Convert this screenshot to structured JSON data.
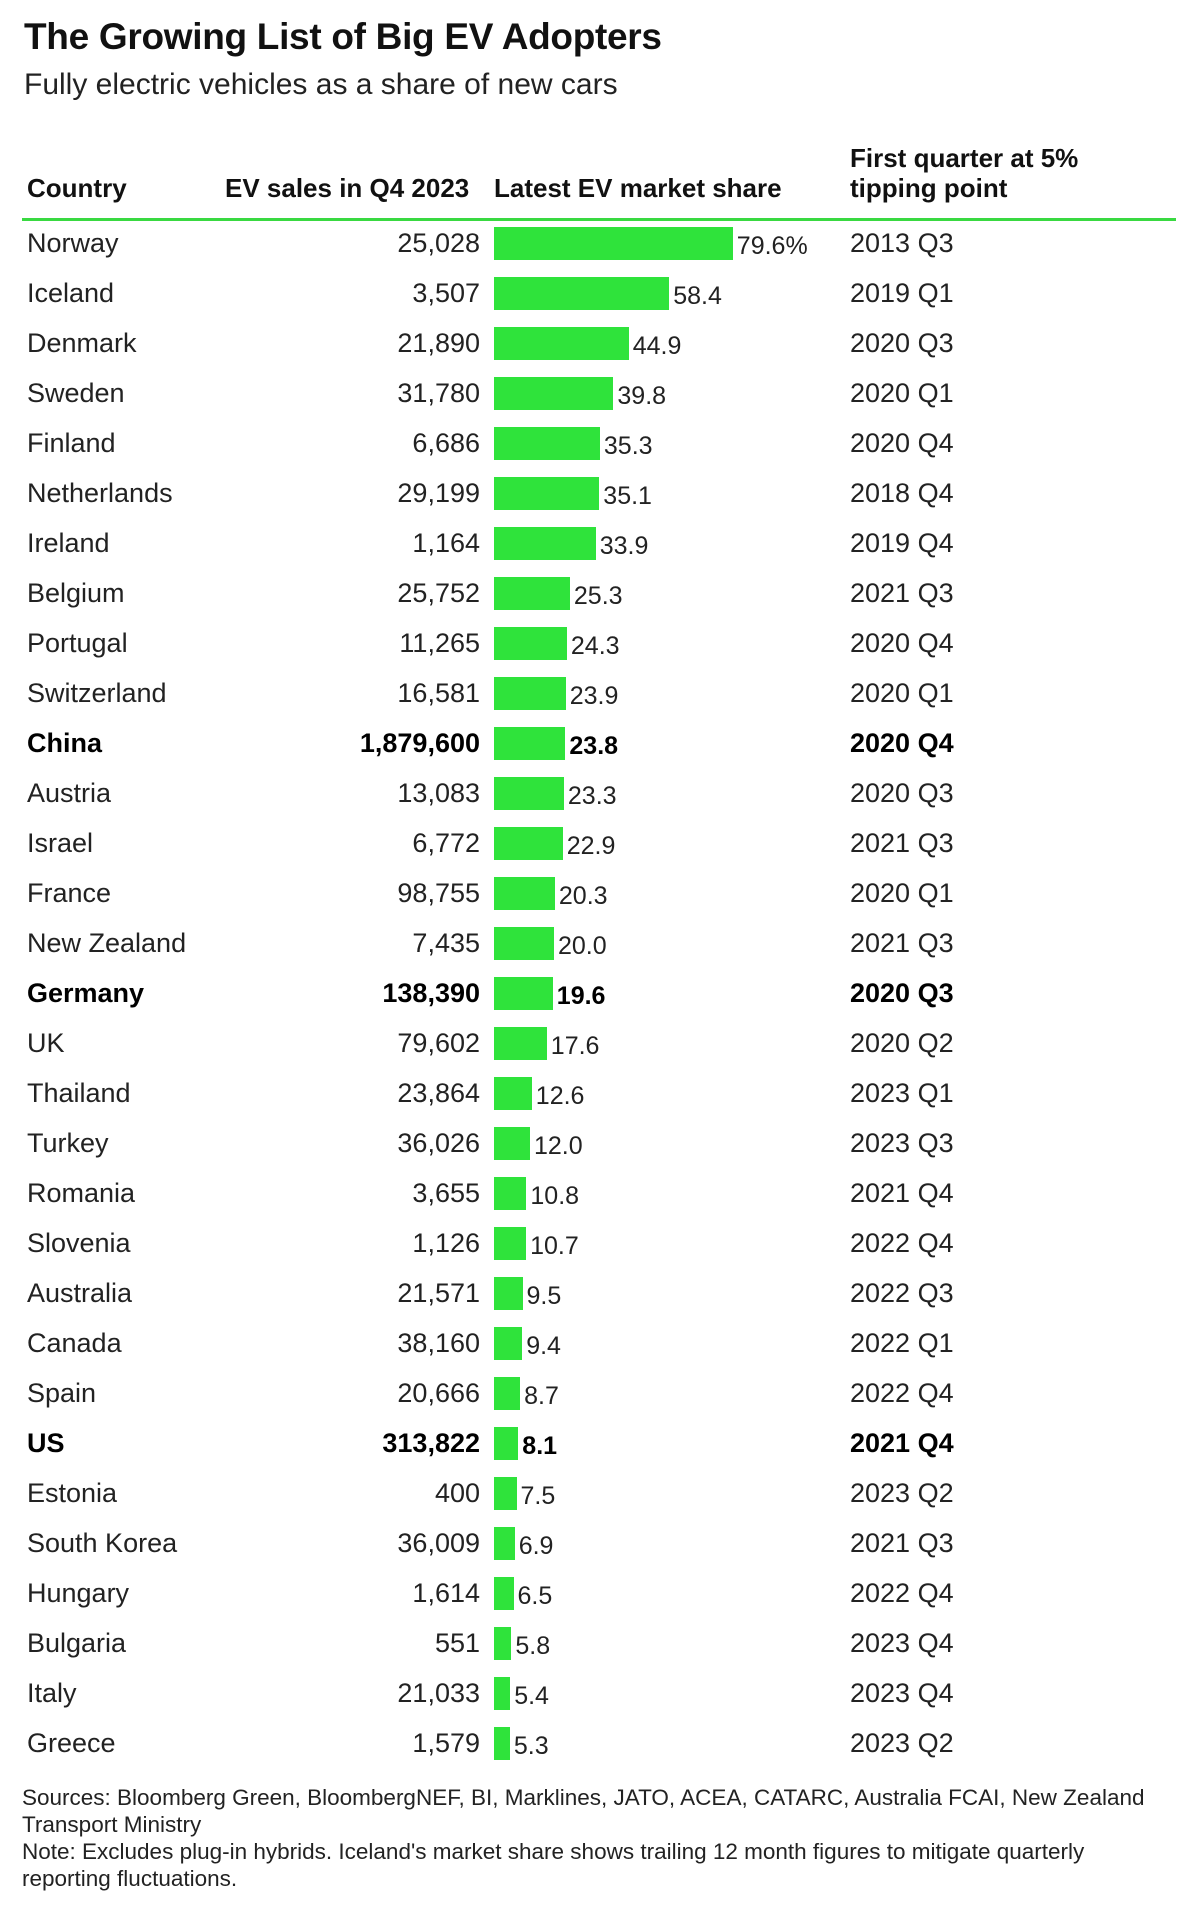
{
  "title": "The Growing List of Big EV Adopters",
  "subtitle": "Fully electric vehicles as a share of new cars",
  "columns": {
    "country": "Country",
    "sales": "EV sales in Q4 2023",
    "share": "Latest EV market share",
    "tipping": "First quarter at 5% tipping point"
  },
  "colors": {
    "bar": "#2fe33b",
    "header_rule": "#39d941"
  },
  "chart_data": {
    "type": "bar",
    "orientation": "horizontal",
    "title": "The Growing List of Big EV Adopters",
    "subtitle": "Fully electric vehicles as a share of new cars",
    "value_unit": "%",
    "xlim": [
      0,
      80
    ],
    "rows": [
      {
        "country": "Norway",
        "sales": "25,028",
        "share": 79.6,
        "share_label": "79.6%",
        "tipping": "2013 Q3",
        "bold": false
      },
      {
        "country": "Iceland",
        "sales": "3,507",
        "share": 58.4,
        "share_label": "58.4",
        "tipping": "2019 Q1",
        "bold": false
      },
      {
        "country": "Denmark",
        "sales": "21,890",
        "share": 44.9,
        "share_label": "44.9",
        "tipping": "2020 Q3",
        "bold": false
      },
      {
        "country": "Sweden",
        "sales": "31,780",
        "share": 39.8,
        "share_label": "39.8",
        "tipping": "2020 Q1",
        "bold": false
      },
      {
        "country": "Finland",
        "sales": "6,686",
        "share": 35.3,
        "share_label": "35.3",
        "tipping": "2020 Q4",
        "bold": false
      },
      {
        "country": "Netherlands",
        "sales": "29,199",
        "share": 35.1,
        "share_label": "35.1",
        "tipping": "2018 Q4",
        "bold": false
      },
      {
        "country": "Ireland",
        "sales": "1,164",
        "share": 33.9,
        "share_label": "33.9",
        "tipping": "2019 Q4",
        "bold": false
      },
      {
        "country": "Belgium",
        "sales": "25,752",
        "share": 25.3,
        "share_label": "25.3",
        "tipping": "2021 Q3",
        "bold": false
      },
      {
        "country": "Portugal",
        "sales": "11,265",
        "share": 24.3,
        "share_label": "24.3",
        "tipping": "2020 Q4",
        "bold": false
      },
      {
        "country": "Switzerland",
        "sales": "16,581",
        "share": 23.9,
        "share_label": "23.9",
        "tipping": "2020 Q1",
        "bold": false
      },
      {
        "country": "China",
        "sales": "1,879,600",
        "share": 23.8,
        "share_label": "23.8",
        "tipping": "2020 Q4",
        "bold": true
      },
      {
        "country": "Austria",
        "sales": "13,083",
        "share": 23.3,
        "share_label": "23.3",
        "tipping": "2020 Q3",
        "bold": false
      },
      {
        "country": "Israel",
        "sales": "6,772",
        "share": 22.9,
        "share_label": "22.9",
        "tipping": "2021 Q3",
        "bold": false
      },
      {
        "country": "France",
        "sales": "98,755",
        "share": 20.3,
        "share_label": "20.3",
        "tipping": "2020 Q1",
        "bold": false
      },
      {
        "country": "New Zealand",
        "sales": "7,435",
        "share": 20.0,
        "share_label": "20.0",
        "tipping": "2021 Q3",
        "bold": false
      },
      {
        "country": "Germany",
        "sales": "138,390",
        "share": 19.6,
        "share_label": "19.6",
        "tipping": "2020 Q3",
        "bold": true
      },
      {
        "country": "UK",
        "sales": "79,602",
        "share": 17.6,
        "share_label": "17.6",
        "tipping": "2020 Q2",
        "bold": false
      },
      {
        "country": "Thailand",
        "sales": "23,864",
        "share": 12.6,
        "share_label": "12.6",
        "tipping": "2023 Q1",
        "bold": false
      },
      {
        "country": "Turkey",
        "sales": "36,026",
        "share": 12.0,
        "share_label": "12.0",
        "tipping": "2023 Q3",
        "bold": false
      },
      {
        "country": "Romania",
        "sales": "3,655",
        "share": 10.8,
        "share_label": "10.8",
        "tipping": "2021 Q4",
        "bold": false
      },
      {
        "country": "Slovenia",
        "sales": "1,126",
        "share": 10.7,
        "share_label": "10.7",
        "tipping": "2022 Q4",
        "bold": false
      },
      {
        "country": "Australia",
        "sales": "21,571",
        "share": 9.5,
        "share_label": "9.5",
        "tipping": "2022 Q3",
        "bold": false
      },
      {
        "country": "Canada",
        "sales": "38,160",
        "share": 9.4,
        "share_label": "9.4",
        "tipping": "2022 Q1",
        "bold": false
      },
      {
        "country": "Spain",
        "sales": "20,666",
        "share": 8.7,
        "share_label": "8.7",
        "tipping": "2022 Q4",
        "bold": false
      },
      {
        "country": "US",
        "sales": "313,822",
        "share": 8.1,
        "share_label": "8.1",
        "tipping": "2021 Q4",
        "bold": true
      },
      {
        "country": "Estonia",
        "sales": "400",
        "share": 7.5,
        "share_label": "7.5",
        "tipping": "2023 Q2",
        "bold": false
      },
      {
        "country": "South Korea",
        "sales": "36,009",
        "share": 6.9,
        "share_label": "6.9",
        "tipping": "2021 Q3",
        "bold": false
      },
      {
        "country": "Hungary",
        "sales": "1,614",
        "share": 6.5,
        "share_label": "6.5",
        "tipping": "2022 Q4",
        "bold": false
      },
      {
        "country": "Bulgaria",
        "sales": "551",
        "share": 5.8,
        "share_label": "5.8",
        "tipping": "2023 Q4",
        "bold": false
      },
      {
        "country": "Italy",
        "sales": "21,033",
        "share": 5.4,
        "share_label": "5.4",
        "tipping": "2023 Q4",
        "bold": false
      },
      {
        "country": "Greece",
        "sales": "1,579",
        "share": 5.3,
        "share_label": "5.3",
        "tipping": "2023 Q2",
        "bold": false
      }
    ]
  },
  "footer": {
    "sources": "Sources: Bloomberg Green, BloombergNEF, BI, Marklines, JATO, ACEA, CATARC, Australia FCAI, New Zealand Transport Ministry",
    "note": "Note: Excludes plug-in hybrids. Iceland's market share shows trailing 12 month figures to mitigate quarterly reporting fluctuations."
  }
}
